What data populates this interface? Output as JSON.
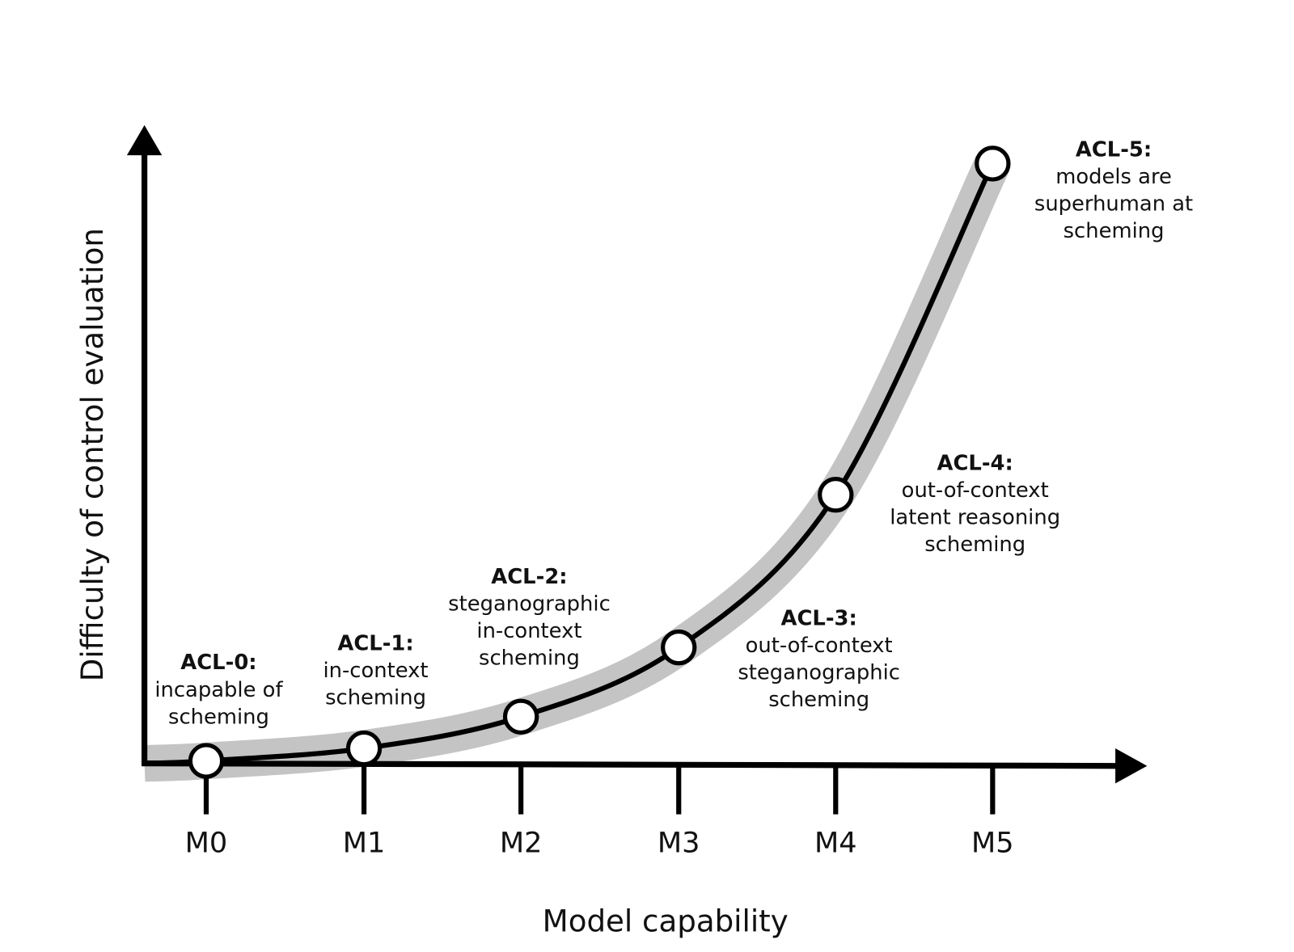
{
  "axes": {
    "x_label": "Model capability",
    "y_label": "Difficulty of control evaluation"
  },
  "levels": [
    {
      "model": "M0",
      "name": "ACL-0:",
      "description": [
        "incapable of",
        "scheming"
      ]
    },
    {
      "model": "M1",
      "name": "ACL-1:",
      "description": [
        "in-context",
        "scheming"
      ]
    },
    {
      "model": "M2",
      "name": "ACL-2:",
      "description": [
        "steganographic",
        "in-context",
        "scheming"
      ]
    },
    {
      "model": "M3",
      "name": "ACL-3:",
      "description": [
        "out-of-context",
        "steganographic",
        "scheming"
      ]
    },
    {
      "model": "M4",
      "name": "ACL-4:",
      "description": [
        "out-of-context",
        "latent reasoning",
        "scheming"
      ]
    },
    {
      "model": "M5",
      "name": "ACL-5:",
      "description": [
        "models are",
        "superhuman at",
        "scheming"
      ]
    }
  ]
}
